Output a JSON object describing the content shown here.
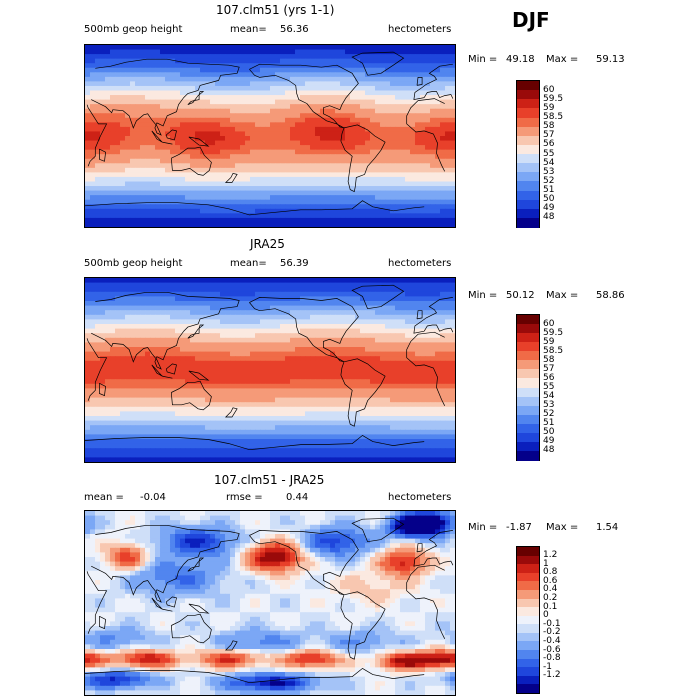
{
  "season": "DJF",
  "palettes": {
    "sequential": [
      "#04008a",
      "#0a1fbd",
      "#1f46dc",
      "#3263e8",
      "#5185ef",
      "#7ba7f5",
      "#a4c3f7",
      "#cfdff8",
      "#fbe9e0",
      "#f8c7b0",
      "#f59a78",
      "#f06b47",
      "#e8402a",
      "#cd2116",
      "#9a0a0a",
      "#670000"
    ],
    "diverging": [
      "#04008a",
      "#0a1fbd",
      "#1f46dc",
      "#3263e8",
      "#5185ef",
      "#7ba7f5",
      "#a4c3f7",
      "#cfdff8",
      "#eef2fb",
      "#fbe9e0",
      "#f8c7b0",
      "#f59a78",
      "#f06b47",
      "#e8402a",
      "#cd2116",
      "#9a0a0a",
      "#670000"
    ]
  },
  "chart_data": [
    {
      "type": "heatmap",
      "title": "107.clm51 (yrs 1-1)",
      "field": "500mb geop height",
      "units": "hectometers",
      "mean_label": "mean=",
      "mean_value": "56.36",
      "min_label": "Min =",
      "min_value": "49.18",
      "max_label": "Max =",
      "max_value": "59.13",
      "levels": [
        "48",
        "49",
        "50",
        "51",
        "52",
        "53",
        "54",
        "55",
        "56",
        "57",
        "58",
        "58.5",
        "59",
        "59.5",
        "60"
      ],
      "colorbar_labels": [
        "60",
        "59.5",
        "59",
        "58.5",
        "58",
        "57",
        "56",
        "55",
        "54",
        "53",
        "52",
        "51",
        "50",
        "49",
        "48"
      ]
    },
    {
      "type": "heatmap",
      "title": "JRA25",
      "field": "500mb geop height",
      "units": "hectometers",
      "mean_label": "mean=",
      "mean_value": "56.39",
      "min_label": "Min =",
      "min_value": "50.12",
      "max_label": "Max =",
      "max_value": "58.86",
      "levels": [
        "48",
        "49",
        "50",
        "51",
        "52",
        "53",
        "54",
        "55",
        "56",
        "57",
        "58",
        "58.5",
        "59",
        "59.5",
        "60"
      ],
      "colorbar_labels": [
        "60",
        "59.5",
        "59",
        "58.5",
        "58",
        "57",
        "56",
        "55",
        "54",
        "53",
        "52",
        "51",
        "50",
        "49",
        "48"
      ]
    },
    {
      "type": "heatmap",
      "title": "107.clm51 - JRA25",
      "field": "",
      "units": "hectometers",
      "mean_label": "mean =",
      "mean_value": "-0.04",
      "rmse_label": "rmse =",
      "rmse_value": "0.44",
      "min_label": "Min =",
      "min_value": "-1.87",
      "max_label": "Max =",
      "max_value": "1.54",
      "levels": [
        "-1.2",
        "-1",
        "-0.8",
        "-0.6",
        "-0.4",
        "-0.2",
        "-0.1",
        "0",
        "0.1",
        "0.2",
        "0.4",
        "0.6",
        "0.8",
        "1",
        "1.2"
      ],
      "colorbar_labels": [
        "1.2",
        "1",
        "0.8",
        "0.6",
        "0.4",
        "0.2",
        "0.1",
        "0",
        "-0.1",
        "-0.2",
        "-0.4",
        "-0.6",
        "-0.8",
        "-1",
        "-1.2"
      ]
    }
  ]
}
